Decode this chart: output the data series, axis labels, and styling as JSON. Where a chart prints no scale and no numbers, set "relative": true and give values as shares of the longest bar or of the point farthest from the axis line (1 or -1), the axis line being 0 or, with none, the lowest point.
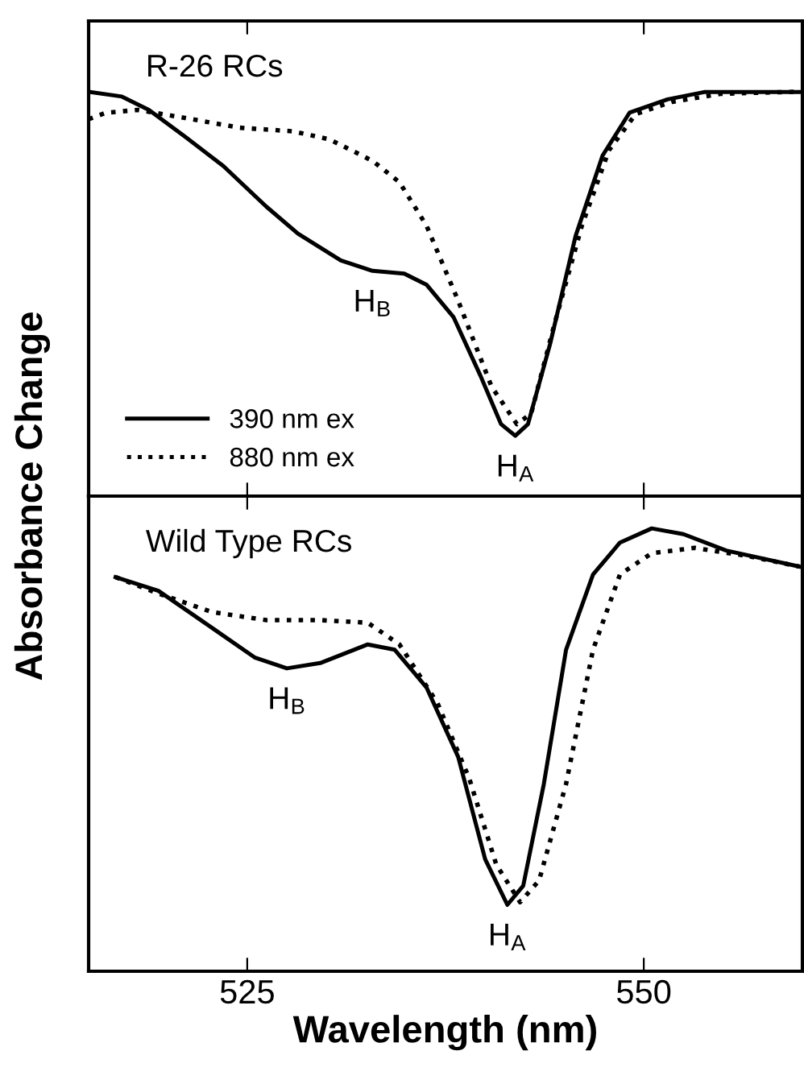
{
  "chart_data": [
    {
      "type": "line",
      "relative": true,
      "xlim": [
        515,
        560
      ],
      "xticks": [
        525,
        550
      ],
      "tick_labels": false,
      "legend": "bottom left",
      "ylabel": "Absorbance Change",
      "annotations": [
        "R-26 RCs",
        {
          "text": "H$_{B}$",
          "x": 532.9,
          "y": 0.557
        },
        {
          "text": "H$_{A}$",
          "x": 541.9,
          "y": 0.149
        }
      ],
      "series": [
        {
          "name": "390 nm ex",
          "color": "#000000",
          "line_style": "solid",
          "x": [
            515,
            517.1,
            518.8,
            521.1,
            523.5,
            526.2,
            528.2,
            530.9,
            532.9,
            534.9,
            536.3,
            538.0,
            539.7,
            541.0,
            541.9,
            542.7,
            544.1,
            545.7,
            547.4,
            549.1,
            551.5,
            553.8,
            559.8
          ],
          "values": [
            1.0,
            0.988,
            0.955,
            0.888,
            0.816,
            0.716,
            0.649,
            0.583,
            0.557,
            0.55,
            0.523,
            0.443,
            0.298,
            0.178,
            0.149,
            0.178,
            0.377,
            0.643,
            0.842,
            0.948,
            0.981,
            0.999,
            0.999
          ]
        },
        {
          "name": "880 nm ex",
          "color": "#000000",
          "line_style": "dotted",
          "x": [
            515,
            516.1,
            518.1,
            521.1,
            524.5,
            527.9,
            530.2,
            532.9,
            534.6,
            536.3,
            538.3,
            540.4,
            542.0,
            542.9,
            544.4,
            546.1,
            547.8,
            549.5,
            551.8,
            554.9,
            559.8
          ],
          "values": [
            0.932,
            0.948,
            0.955,
            0.935,
            0.911,
            0.902,
            0.882,
            0.829,
            0.776,
            0.669,
            0.483,
            0.271,
            0.178,
            0.204,
            0.43,
            0.669,
            0.855,
            0.945,
            0.975,
            0.995,
            1.0
          ]
        }
      ]
    },
    {
      "type": "line",
      "relative": true,
      "xlim": [
        515,
        560
      ],
      "xticks": [
        525,
        550
      ],
      "tick_labels": "x",
      "xlabel": "Wavelength (nm)",
      "annotations": [
        "Wild Type RCs",
        {
          "text": "H$_{B}$",
          "x": 527.5,
          "y": 0.684
        },
        {
          "text": "H$_{A}$",
          "x": 541.4,
          "y": 0.15
        }
      ],
      "series": [
        {
          "color": "#000000",
          "line_style": "solid",
          "x": [
            516.7,
            519.4,
            522.8,
            525.5,
            527.5,
            529.6,
            532.6,
            534.3,
            536.3,
            538.3,
            540.0,
            541.4,
            542.4,
            543.7,
            545.1,
            546.8,
            548.5,
            550.5,
            552.5,
            555.2,
            559.8
          ],
          "values": [
            0.89,
            0.859,
            0.775,
            0.708,
            0.684,
            0.696,
            0.738,
            0.726,
            0.641,
            0.484,
            0.253,
            0.15,
            0.193,
            0.423,
            0.726,
            0.896,
            0.968,
            1.0,
            0.987,
            0.95,
            0.914
          ]
        },
        {
          "color": "#000000",
          "line_style": "dotted",
          "x": [
            516.7,
            519.4,
            522.8,
            526.2,
            529.6,
            532.6,
            534.6,
            537.0,
            539.0,
            540.7,
            542.2,
            543.4,
            545.1,
            546.8,
            548.5,
            550.5,
            553.2,
            556.5,
            559.8
          ],
          "values": [
            0.89,
            0.853,
            0.811,
            0.793,
            0.793,
            0.787,
            0.738,
            0.605,
            0.435,
            0.241,
            0.156,
            0.205,
            0.423,
            0.726,
            0.896,
            0.944,
            0.956,
            0.938,
            0.914
          ]
        }
      ]
    }
  ]
}
